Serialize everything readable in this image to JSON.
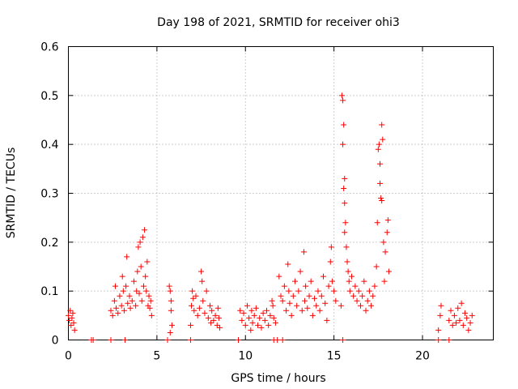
{
  "chart_data": {
    "type": "scatter",
    "title": "Day 198 of 2021, SRMTID for receiver ohi3",
    "xlabel": "GPS time / hours",
    "ylabel": "SRMTID / TECUs",
    "xlim": [
      0,
      24
    ],
    "ylim": [
      0,
      0.6
    ],
    "xticks": [
      0,
      5,
      10,
      15,
      20
    ],
    "yticks": [
      0,
      0.1,
      0.2,
      0.3,
      0.4,
      0.5,
      0.6
    ],
    "xtick_labels": [
      "0",
      "5",
      "10",
      "15",
      "20"
    ],
    "ytick_labels": [
      "0",
      "0.1",
      "0.2",
      "0.3",
      "0.4",
      "0.5",
      "0.6"
    ],
    "grid": true,
    "marker": "+",
    "color": "#ff0000",
    "series": [
      {
        "name": "SRMTID",
        "points": [
          [
            0.0,
            0.05
          ],
          [
            0.05,
            0.04
          ],
          [
            0.1,
            0.06
          ],
          [
            0.15,
            0.03
          ],
          [
            0.2,
            0.045
          ],
          [
            0.25,
            0.055
          ],
          [
            0.3,
            0.035
          ],
          [
            0.35,
            0.02
          ],
          [
            1.3,
            0.0
          ],
          [
            1.4,
            0.0
          ],
          [
            2.4,
            0.0
          ],
          [
            3.2,
            0.0
          ],
          [
            5.6,
            0.0
          ],
          [
            6.9,
            0.0
          ],
          [
            9.6,
            0.0
          ],
          [
            11.6,
            0.0
          ],
          [
            11.8,
            0.0
          ],
          [
            12.1,
            0.0
          ],
          [
            15.5,
            0.0
          ],
          [
            20.9,
            0.0
          ],
          [
            21.5,
            0.0
          ],
          [
            2.4,
            0.06
          ],
          [
            2.5,
            0.05
          ],
          [
            2.6,
            0.08
          ],
          [
            2.65,
            0.11
          ],
          [
            2.7,
            0.065
          ],
          [
            2.8,
            0.055
          ],
          [
            2.9,
            0.09
          ],
          [
            3.0,
            0.07
          ],
          [
            3.05,
            0.13
          ],
          [
            3.1,
            0.1
          ],
          [
            3.15,
            0.06
          ],
          [
            3.25,
            0.11
          ],
          [
            3.3,
            0.17
          ],
          [
            3.35,
            0.075
          ],
          [
            3.45,
            0.09
          ],
          [
            3.5,
            0.065
          ],
          [
            3.6,
            0.08
          ],
          [
            3.7,
            0.12
          ],
          [
            3.8,
            0.07
          ],
          [
            3.85,
            0.1
          ],
          [
            3.9,
            0.14
          ],
          [
            3.95,
            0.19
          ],
          [
            4.0,
            0.095
          ],
          [
            4.05,
            0.2
          ],
          [
            4.1,
            0.15
          ],
          [
            4.15,
            0.08
          ],
          [
            4.2,
            0.21
          ],
          [
            4.25,
            0.11
          ],
          [
            4.3,
            0.225
          ],
          [
            4.35,
            0.13
          ],
          [
            4.4,
            0.1
          ],
          [
            4.45,
            0.16
          ],
          [
            4.5,
            0.07
          ],
          [
            4.55,
            0.09
          ],
          [
            4.6,
            0.065
          ],
          [
            4.65,
            0.08
          ],
          [
            4.7,
            0.05
          ],
          [
            5.7,
            0.11
          ],
          [
            5.75,
            0.1
          ],
          [
            5.8,
            0.06
          ],
          [
            5.85,
            0.03
          ],
          [
            5.75,
            0.015
          ],
          [
            5.8,
            0.08
          ],
          [
            6.9,
            0.03
          ],
          [
            6.95,
            0.07
          ],
          [
            7.0,
            0.1
          ],
          [
            7.05,
            0.085
          ],
          [
            7.1,
            0.06
          ],
          [
            7.2,
            0.09
          ],
          [
            7.3,
            0.05
          ],
          [
            7.4,
            0.065
          ],
          [
            7.5,
            0.14
          ],
          [
            7.55,
            0.12
          ],
          [
            7.6,
            0.08
          ],
          [
            7.7,
            0.055
          ],
          [
            7.8,
            0.1
          ],
          [
            7.9,
            0.045
          ],
          [
            8.0,
            0.07
          ],
          [
            8.05,
            0.035
          ],
          [
            8.1,
            0.06
          ],
          [
            8.2,
            0.04
          ],
          [
            8.3,
            0.05
          ],
          [
            8.4,
            0.03
          ],
          [
            8.45,
            0.065
          ],
          [
            8.5,
            0.045
          ],
          [
            8.55,
            0.025
          ],
          [
            9.7,
            0.06
          ],
          [
            9.8,
            0.04
          ],
          [
            9.9,
            0.055
          ],
          [
            10.0,
            0.03
          ],
          [
            10.1,
            0.07
          ],
          [
            10.2,
            0.045
          ],
          [
            10.3,
            0.02
          ],
          [
            10.35,
            0.06
          ],
          [
            10.4,
            0.035
          ],
          [
            10.5,
            0.05
          ],
          [
            10.6,
            0.065
          ],
          [
            10.7,
            0.03
          ],
          [
            10.8,
            0.045
          ],
          [
            10.9,
            0.025
          ],
          [
            11.0,
            0.055
          ],
          [
            11.1,
            0.04
          ],
          [
            11.2,
            0.06
          ],
          [
            11.3,
            0.03
          ],
          [
            11.4,
            0.05
          ],
          [
            11.5,
            0.08
          ],
          [
            11.55,
            0.07
          ],
          [
            11.6,
            0.045
          ],
          [
            11.7,
            0.035
          ],
          [
            11.9,
            0.13
          ],
          [
            12.0,
            0.09
          ],
          [
            12.1,
            0.08
          ],
          [
            12.2,
            0.11
          ],
          [
            12.3,
            0.06
          ],
          [
            12.4,
            0.155
          ],
          [
            12.45,
            0.1
          ],
          [
            12.5,
            0.075
          ],
          [
            12.6,
            0.05
          ],
          [
            12.7,
            0.09
          ],
          [
            12.8,
            0.12
          ],
          [
            12.9,
            0.07
          ],
          [
            13.0,
            0.1
          ],
          [
            13.1,
            0.14
          ],
          [
            13.2,
            0.06
          ],
          [
            13.3,
            0.18
          ],
          [
            13.35,
            0.08
          ],
          [
            13.4,
            0.11
          ],
          [
            13.5,
            0.065
          ],
          [
            13.6,
            0.09
          ],
          [
            13.7,
            0.12
          ],
          [
            13.8,
            0.05
          ],
          [
            13.9,
            0.085
          ],
          [
            14.0,
            0.07
          ],
          [
            14.1,
            0.1
          ],
          [
            14.2,
            0.06
          ],
          [
            14.3,
            0.09
          ],
          [
            14.4,
            0.13
          ],
          [
            14.5,
            0.075
          ],
          [
            14.6,
            0.04
          ],
          [
            14.7,
            0.11
          ],
          [
            14.8,
            0.16
          ],
          [
            14.85,
            0.19
          ],
          [
            14.9,
            0.12
          ],
          [
            15.0,
            0.1
          ],
          [
            15.1,
            0.08
          ],
          [
            15.4,
            0.07
          ],
          [
            15.45,
            0.5
          ],
          [
            15.5,
            0.49
          ],
          [
            15.55,
            0.44
          ],
          [
            15.5,
            0.4
          ],
          [
            15.6,
            0.33
          ],
          [
            15.55,
            0.31
          ],
          [
            15.6,
            0.28
          ],
          [
            15.65,
            0.24
          ],
          [
            15.6,
            0.22
          ],
          [
            15.7,
            0.19
          ],
          [
            15.75,
            0.16
          ],
          [
            15.8,
            0.14
          ],
          [
            15.85,
            0.12
          ],
          [
            15.9,
            0.1
          ],
          [
            16.0,
            0.13
          ],
          [
            16.1,
            0.09
          ],
          [
            16.2,
            0.11
          ],
          [
            16.3,
            0.08
          ],
          [
            16.4,
            0.1
          ],
          [
            16.5,
            0.07
          ],
          [
            16.6,
            0.09
          ],
          [
            16.7,
            0.12
          ],
          [
            16.8,
            0.06
          ],
          [
            16.9,
            0.08
          ],
          [
            17.0,
            0.1
          ],
          [
            17.1,
            0.07
          ],
          [
            17.2,
            0.09
          ],
          [
            17.3,
            0.11
          ],
          [
            17.4,
            0.15
          ],
          [
            17.45,
            0.24
          ],
          [
            17.5,
            0.39
          ],
          [
            17.55,
            0.4
          ],
          [
            17.6,
            0.36
          ],
          [
            17.6,
            0.32
          ],
          [
            17.65,
            0.29
          ],
          [
            17.7,
            0.285
          ],
          [
            17.7,
            0.44
          ],
          [
            17.75,
            0.41
          ],
          [
            17.8,
            0.2
          ],
          [
            17.85,
            0.12
          ],
          [
            17.9,
            0.18
          ],
          [
            18.0,
            0.22
          ],
          [
            18.05,
            0.245
          ],
          [
            18.1,
            0.14
          ],
          [
            20.9,
            0.02
          ],
          [
            21.0,
            0.05
          ],
          [
            21.05,
            0.07
          ],
          [
            21.5,
            0.04
          ],
          [
            21.6,
            0.06
          ],
          [
            21.7,
            0.03
          ],
          [
            21.8,
            0.05
          ],
          [
            21.9,
            0.035
          ],
          [
            22.0,
            0.065
          ],
          [
            22.1,
            0.04
          ],
          [
            22.2,
            0.075
          ],
          [
            22.3,
            0.03
          ],
          [
            22.4,
            0.055
          ],
          [
            22.5,
            0.045
          ],
          [
            22.6,
            0.02
          ],
          [
            22.7,
            0.035
          ],
          [
            22.8,
            0.05
          ]
        ]
      }
    ]
  }
}
